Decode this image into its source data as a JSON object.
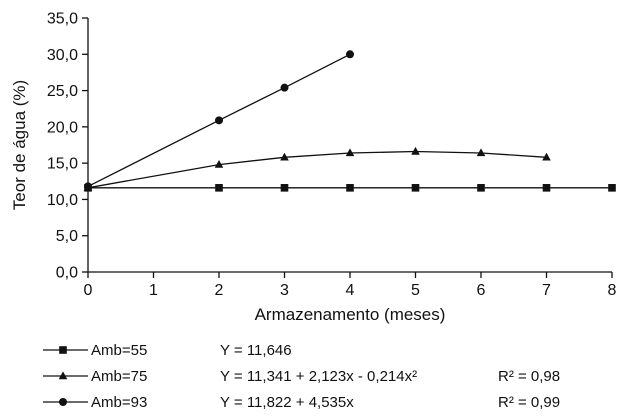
{
  "chart_data": {
    "type": "line",
    "xlabel": "Armazenamento (meses)",
    "ylabel": "Teor de água (%)",
    "xlim": [
      0,
      8
    ],
    "ylim": [
      0,
      35
    ],
    "x_ticks": [
      "0",
      "1",
      "2",
      "3",
      "4",
      "5",
      "6",
      "7",
      "8"
    ],
    "y_ticks": [
      "0,0",
      "5,0",
      "10,0",
      "15,0",
      "20,0",
      "25,0",
      "30,0",
      "35,0"
    ],
    "grid": false,
    "legend_position": "bottom",
    "series": [
      {
        "name": "Amb=55",
        "marker": "square",
        "x": [
          0,
          2,
          3,
          4,
          5,
          6,
          7,
          8
        ],
        "values": [
          11.6,
          11.6,
          11.6,
          11.6,
          11.6,
          11.6,
          11.6,
          11.6
        ],
        "equation": "Y = 11,646",
        "r2": ""
      },
      {
        "name": "Amb=75",
        "marker": "triangle",
        "x": [
          0,
          2,
          3,
          4,
          5,
          6,
          7
        ],
        "values": [
          11.6,
          14.8,
          15.8,
          16.4,
          16.6,
          16.4,
          15.8
        ],
        "equation": "Y = 11,341 + 2,123x - 0,214x²",
        "r2": "R² = 0,98"
      },
      {
        "name": "Amb=93",
        "marker": "circle",
        "x": [
          0,
          2,
          3,
          4
        ],
        "values": [
          11.8,
          20.9,
          25.4,
          30.0
        ],
        "equation": "Y = 11,822 + 4,535x",
        "r2": "R² = 0,99"
      }
    ]
  }
}
